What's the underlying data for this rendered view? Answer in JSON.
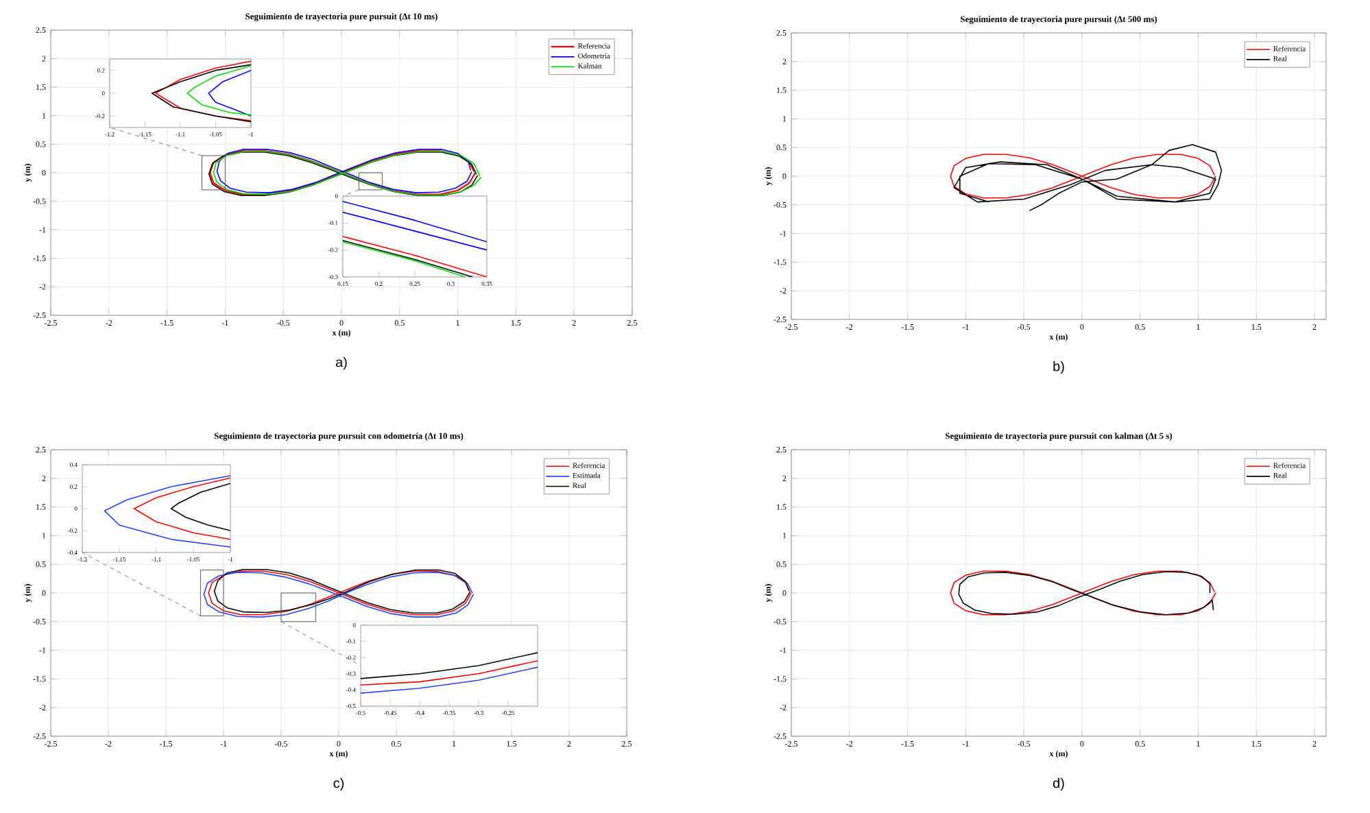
{
  "chart_data": [
    {
      "type": "line",
      "title": "Seguimiento de trayectoria pure pursuit (Δt 10 ms)",
      "xlabel": "x (m)",
      "ylabel": "y (m)",
      "xlim": [
        -2.5,
        2.5
      ],
      "ylim": [
        -2.5,
        2.5
      ],
      "xticks": [
        -2.5,
        -2,
        -1.5,
        -1,
        -0.5,
        0,
        0.5,
        1,
        1.5,
        2,
        2.5
      ],
      "yticks": [
        -2.5,
        -2,
        -1.5,
        -1,
        -0.5,
        0,
        0.5,
        1,
        1.5,
        2,
        2.5
      ],
      "grid": true,
      "legend": "top right",
      "annotations": [
        "a)"
      ],
      "series": [
        {
          "name": "Referencia",
          "color": "#ff0000",
          "x": [
            1.15,
            1.1,
            1.0,
            0.85,
            0.65,
            0.45,
            0.25,
            0.1,
            0,
            -0.1,
            -0.25,
            -0.45,
            -0.65,
            -0.85,
            -1.0,
            -1.1,
            -1.13,
            -1.1,
            -1.0,
            -0.85,
            -0.65,
            -0.45,
            -0.25,
            -0.1,
            0,
            0.1,
            0.25,
            0.45,
            0.65,
            0.85,
            1.0,
            1.1,
            1.14
          ],
          "values": [
            0,
            -0.18,
            -0.31,
            -0.38,
            -0.38,
            -0.32,
            -0.2,
            -0.08,
            0,
            0.08,
            0.2,
            0.32,
            0.38,
            0.38,
            0.31,
            0.18,
            0,
            -0.18,
            -0.31,
            -0.38,
            -0.38,
            -0.32,
            -0.2,
            -0.08,
            0,
            0.08,
            0.2,
            0.32,
            0.38,
            0.38,
            0.31,
            0.18,
            0.02
          ]
        },
        {
          "color": "#000000",
          "x": [
            1.17,
            1.12,
            1.02,
            0.87,
            0.66,
            0.45,
            0.25,
            0.1,
            0,
            -0.1,
            -0.26,
            -0.46,
            -0.66,
            -0.86,
            -1.02,
            -1.11,
            -1.14,
            -1.11,
            -1.01,
            -0.86,
            -0.66,
            -0.45,
            -0.25,
            -0.1,
            0,
            0.1,
            0.25,
            0.45,
            0.65,
            0.86,
            1.02,
            1.12,
            1.16
          ],
          "values": [
            -0.05,
            -0.22,
            -0.34,
            -0.4,
            -0.4,
            -0.33,
            -0.21,
            -0.1,
            -0.02,
            0.06,
            0.18,
            0.3,
            0.36,
            0.36,
            0.29,
            0.16,
            -0.02,
            -0.2,
            -0.33,
            -0.4,
            -0.4,
            -0.34,
            -0.22,
            -0.1,
            -0.02,
            0.06,
            0.18,
            0.3,
            0.36,
            0.36,
            0.29,
            0.15,
            -0.03
          ]
        },
        {
          "name": "Odometría",
          "color": "#0000ff",
          "x": [
            1.12,
            1.08,
            0.98,
            0.84,
            0.64,
            0.44,
            0.24,
            0.1,
            0,
            -0.1,
            -0.24,
            -0.44,
            -0.64,
            -0.84,
            -0.98,
            -1.05,
            -1.07,
            -1.04,
            -0.96,
            -0.82,
            -0.62,
            -0.42,
            -0.22,
            -0.08,
            0.02,
            0.12,
            0.27,
            0.47,
            0.67,
            0.86,
            1.0,
            1.09,
            1.11
          ],
          "values": [
            0.02,
            -0.15,
            -0.27,
            -0.34,
            -0.35,
            -0.29,
            -0.17,
            -0.05,
            0.03,
            0.11,
            0.23,
            0.35,
            0.41,
            0.41,
            0.34,
            0.2,
            0.02,
            -0.14,
            -0.27,
            -0.34,
            -0.35,
            -0.29,
            -0.17,
            -0.05,
            0.03,
            0.11,
            0.23,
            0.35,
            0.41,
            0.41,
            0.34,
            0.2,
            0.04
          ]
        },
        {
          "name": "Kalman",
          "color": "#00dd00",
          "x": [
            1.2,
            1.14,
            1.03,
            0.88,
            0.67,
            0.46,
            0.26,
            0.11,
            0.01,
            -0.09,
            -0.24,
            -0.44,
            -0.64,
            -0.84,
            -0.99,
            -1.08,
            -1.1,
            -1.07,
            -0.98,
            -0.84,
            -0.64,
            -0.44,
            -0.24,
            -0.09,
            0.01,
            0.11,
            0.26,
            0.46,
            0.66,
            0.87,
            1.03,
            1.14,
            1.19
          ],
          "values": [
            -0.08,
            -0.22,
            -0.33,
            -0.39,
            -0.39,
            -0.33,
            -0.21,
            -0.09,
            -0.01,
            0.07,
            0.19,
            0.31,
            0.37,
            0.37,
            0.3,
            0.17,
            0,
            -0.17,
            -0.3,
            -0.37,
            -0.38,
            -0.33,
            -0.21,
            -0.09,
            -0.01,
            0.07,
            0.19,
            0.31,
            0.37,
            0.37,
            0.3,
            0.16,
            -0.06
          ]
        }
      ]
    },
    {
      "type": "line",
      "xlim": [
        -1.2,
        -1
      ],
      "ylim": [
        -0.3,
        0.3
      ],
      "xticks": [
        -1.2,
        -1.15,
        -1.1,
        -1.05,
        -1
      ],
      "yticks": [
        -0.2,
        0,
        0.2
      ],
      "series": [
        {
          "color": "#ff0000",
          "x": [
            -1,
            -1.05,
            -1.1,
            -1.135,
            -1.1,
            -1.05,
            -1
          ],
          "values": [
            0.28,
            0.22,
            0.12,
            0,
            -0.13,
            -0.2,
            -0.24
          ]
        },
        {
          "color": "#000000",
          "x": [
            -1,
            -1.05,
            -1.1,
            -1.14,
            -1.11,
            -1.05,
            -1
          ],
          "values": [
            0.25,
            0.2,
            0.1,
            0,
            -0.12,
            -0.2,
            -0.25
          ]
        },
        {
          "color": "#0000ff",
          "x": [
            -1,
            -1.04,
            -1.06,
            -1.05,
            -1.02,
            -1
          ],
          "values": [
            0.2,
            0.1,
            0,
            -0.08,
            -0.15,
            -0.2
          ]
        },
        {
          "color": "#00dd00",
          "x": [
            -1,
            -1.05,
            -1.08,
            -1.09,
            -1.07,
            -1.03,
            -1
          ],
          "values": [
            0.24,
            0.15,
            0.05,
            0,
            -0.1,
            -0.17,
            -0.19
          ]
        }
      ]
    },
    {
      "type": "line",
      "xlim": [
        0.15,
        0.35
      ],
      "ylim": [
        -0.3,
        0
      ],
      "xticks": [
        0.15,
        0.2,
        0.25,
        0.3,
        0.35
      ],
      "yticks": [
        -0.3,
        -0.2,
        -0.1,
        0
      ],
      "series": [
        {
          "color": "#ff0000",
          "x": [
            0.15,
            0.25,
            0.35
          ],
          "values": [
            -0.15,
            -0.22,
            -0.3
          ]
        },
        {
          "color": "#000000",
          "x": [
            0.15,
            0.25,
            0.33
          ],
          "values": [
            -0.165,
            -0.235,
            -0.3
          ]
        },
        {
          "color": "#0000ff",
          "x": [
            0.15,
            0.25,
            0.35
          ],
          "values": [
            -0.02,
            -0.09,
            -0.17
          ]
        },
        {
          "color": "#0000ff",
          "x": [
            0.15,
            0.25,
            0.35
          ],
          "values": [
            -0.06,
            -0.13,
            -0.2
          ]
        },
        {
          "color": "#00dd00",
          "x": [
            0.15,
            0.25,
            0.32
          ],
          "values": [
            -0.17,
            -0.24,
            -0.3
          ]
        }
      ]
    },
    {
      "type": "line",
      "title": "Seguimiento de trayectoria pure pursuit (Δt 500 ms)",
      "xlabel": "x (m)",
      "ylabel": "y (m)",
      "xlim": [
        -2.5,
        2.1
      ],
      "ylim": [
        -2.5,
        2.5
      ],
      "xticks": [
        -2.5,
        -2,
        -1.5,
        -1,
        -0.5,
        0,
        0.5,
        1,
        1.5,
        2
      ],
      "yticks": [
        -2.5,
        -2,
        -1.5,
        -1,
        -0.5,
        0,
        0.5,
        1,
        1.5,
        2,
        2.5
      ],
      "grid": true,
      "legend": "top right",
      "annotations": [
        "b)"
      ],
      "series": [
        {
          "name": "Referencia",
          "color": "#ff0000",
          "x": [
            1.15,
            1.1,
            1.0,
            0.85,
            0.65,
            0.45,
            0.25,
            0.1,
            0,
            -0.1,
            -0.25,
            -0.45,
            -0.65,
            -0.85,
            -1.0,
            -1.1,
            -1.13,
            -1.1,
            -1.0,
            -0.85,
            -0.65,
            -0.45,
            -0.25,
            -0.1,
            0,
            0.1,
            0.25,
            0.45,
            0.65,
            0.85,
            1.0,
            1.1,
            1.14
          ],
          "values": [
            0,
            -0.18,
            -0.31,
            -0.38,
            -0.38,
            -0.32,
            -0.2,
            -0.08,
            0,
            0.08,
            0.2,
            0.32,
            0.38,
            0.38,
            0.31,
            0.18,
            0,
            -0.18,
            -0.31,
            -0.38,
            -0.38,
            -0.32,
            -0.2,
            -0.08,
            0,
            0.08,
            0.2,
            0.32,
            0.38,
            0.38,
            0.31,
            0.18,
            0.02
          ]
        },
        {
          "name": "Real",
          "color": "#000000",
          "x": [
            -0.45,
            -0.35,
            -0.2,
            0,
            0.3,
            0.6,
            0.75,
            0.95,
            1.15,
            1.2,
            1.17,
            1.1,
            0.8,
            0.3,
            0,
            -0.3,
            -0.7,
            -1.0,
            -1.1,
            -0.9,
            -0.5,
            -0.1,
            0.2,
            0.6,
            0.85,
            1.15,
            1.1,
            0.8,
            0.3,
            0,
            -0.4,
            -0.8,
            -1.05,
            -1.05,
            -0.8
          ],
          "values": [
            -0.6,
            -0.5,
            -0.3,
            -0.1,
            -0.05,
            0.2,
            0.45,
            0.55,
            0.42,
            0.1,
            -0.15,
            -0.4,
            -0.45,
            -0.4,
            -0.05,
            0.2,
            0.25,
            0.15,
            -0.2,
            -0.45,
            -0.4,
            -0.15,
            0.1,
            0.2,
            0.15,
            -0.05,
            -0.3,
            -0.45,
            -0.35,
            -0.05,
            0.2,
            0.22,
            0,
            -0.3,
            -0.45
          ]
        }
      ]
    },
    {
      "type": "line",
      "title": "Seguimiento de trayectoria pure pursuit con odometría (Δt 10 ms)",
      "xlabel": "x (m)",
      "ylabel": "y (m)",
      "xlim": [
        -2.5,
        2.5
      ],
      "ylim": [
        -2.5,
        2.5
      ],
      "xticks": [
        -2.5,
        -2,
        -1.5,
        -1,
        -0.5,
        0,
        0.5,
        1,
        1.5,
        2,
        2.5
      ],
      "yticks": [
        -2.5,
        -2,
        -1.5,
        -1,
        -0.5,
        0,
        0.5,
        1,
        1.5,
        2,
        2.5
      ],
      "grid": true,
      "legend": "top right",
      "annotations": [
        "c)"
      ],
      "series": [
        {
          "name": "Referencia",
          "color": "#ff0000",
          "x": [
            1.15,
            1.1,
            1.0,
            0.85,
            0.65,
            0.45,
            0.25,
            0.1,
            0,
            -0.1,
            -0.25,
            -0.45,
            -0.65,
            -0.85,
            -1.0,
            -1.1,
            -1.13,
            -1.1,
            -1.0,
            -0.85,
            -0.65,
            -0.45,
            -0.25,
            -0.1,
            0,
            0.1,
            0.25,
            0.45,
            0.65,
            0.85,
            1.0,
            1.1,
            1.14
          ],
          "values": [
            0,
            -0.18,
            -0.31,
            -0.38,
            -0.38,
            -0.32,
            -0.2,
            -0.08,
            0,
            0.08,
            0.2,
            0.32,
            0.38,
            0.38,
            0.31,
            0.18,
            0,
            -0.18,
            -0.31,
            -0.38,
            -0.38,
            -0.32,
            -0.2,
            -0.08,
            0,
            0.08,
            0.2,
            0.32,
            0.38,
            0.38,
            0.31,
            0.18,
            0.02
          ]
        },
        {
          "name": "Estimada",
          "color": "#2244ff",
          "x": [
            1.17,
            1.12,
            1.02,
            0.86,
            0.66,
            0.45,
            0.25,
            0.1,
            0,
            -0.1,
            -0.26,
            -0.47,
            -0.67,
            -0.88,
            -1.04,
            -1.14,
            -1.17,
            -1.14,
            -1.04,
            -0.88,
            -0.67,
            -0.46,
            -0.26,
            -0.1,
            0,
            0.1,
            0.25,
            0.45,
            0.65,
            0.86,
            1.02,
            1.12,
            1.16
          ],
          "values": [
            -0.02,
            -0.21,
            -0.35,
            -0.42,
            -0.42,
            -0.36,
            -0.24,
            -0.12,
            -0.04,
            0.04,
            0.16,
            0.28,
            0.35,
            0.36,
            0.3,
            0.17,
            -0.02,
            -0.2,
            -0.33,
            -0.41,
            -0.42,
            -0.38,
            -0.27,
            -0.15,
            -0.06,
            0.03,
            0.15,
            0.28,
            0.35,
            0.36,
            0.3,
            0.16,
            0
          ]
        },
        {
          "name": "Real",
          "color": "#000000",
          "x": [
            1.14,
            1.09,
            0.99,
            0.85,
            0.65,
            0.45,
            0.25,
            0.1,
            0,
            -0.1,
            -0.24,
            -0.43,
            -0.63,
            -0.83,
            -0.97,
            -1.05,
            -1.08,
            -1.05,
            -0.97,
            -0.83,
            -0.63,
            -0.43,
            -0.23,
            -0.08,
            0.02,
            0.12,
            0.27,
            0.47,
            0.67,
            0.87,
            1.01,
            1.1,
            1.13
          ],
          "values": [
            0.02,
            -0.15,
            -0.28,
            -0.35,
            -0.35,
            -0.29,
            -0.17,
            -0.05,
            0.03,
            0.11,
            0.23,
            0.35,
            0.41,
            0.41,
            0.35,
            0.21,
            0.03,
            -0.14,
            -0.26,
            -0.33,
            -0.34,
            -0.3,
            -0.2,
            -0.1,
            -0.02,
            0.07,
            0.2,
            0.33,
            0.4,
            0.4,
            0.34,
            0.2,
            0.04
          ]
        }
      ]
    },
    {
      "type": "line",
      "xlim": [
        -1.2,
        -1
      ],
      "ylim": [
        -0.4,
        0.4
      ],
      "xticks": [
        -1.2,
        -1.15,
        -1.1,
        -1.05,
        -1
      ],
      "yticks": [
        -0.4,
        -0.2,
        0,
        0.2,
        0.4
      ],
      "series": [
        {
          "color": "#ff0000",
          "x": [
            -1,
            -1.05,
            -1.1,
            -1.13,
            -1.1,
            -1.05,
            -1
          ],
          "values": [
            0.28,
            0.2,
            0.1,
            0,
            -0.12,
            -0.22,
            -0.28
          ]
        },
        {
          "color": "#2244ff",
          "x": [
            -1,
            -1.08,
            -1.14,
            -1.17,
            -1.15,
            -1.08,
            -1
          ],
          "values": [
            0.3,
            0.2,
            0.08,
            -0.02,
            -0.15,
            -0.28,
            -0.35
          ]
        },
        {
          "color": "#000000",
          "x": [
            -1,
            -1.04,
            -1.07,
            -1.08,
            -1.06,
            -1.03,
            -1
          ],
          "values": [
            0.23,
            0.15,
            0.05,
            0,
            -0.08,
            -0.15,
            -0.2
          ]
        }
      ]
    },
    {
      "type": "line",
      "xlim": [
        -0.5,
        -0.2
      ],
      "ylim": [
        -0.5,
        0
      ],
      "xticks": [
        -0.5,
        -0.45,
        -0.4,
        -0.35,
        -0.3,
        -0.25
      ],
      "yticks": [
        -0.5,
        -0.4,
        -0.3,
        -0.2,
        -0.1,
        0
      ],
      "series": [
        {
          "color": "#ff0000",
          "x": [
            -0.5,
            -0.4,
            -0.3,
            -0.2
          ],
          "values": [
            -0.37,
            -0.35,
            -0.3,
            -0.22
          ]
        },
        {
          "color": "#2244ff",
          "x": [
            -0.5,
            -0.4,
            -0.3,
            -0.2
          ],
          "values": [
            -0.42,
            -0.39,
            -0.34,
            -0.26
          ]
        },
        {
          "color": "#000000",
          "x": [
            -0.5,
            -0.4,
            -0.3,
            -0.2
          ],
          "values": [
            -0.33,
            -0.3,
            -0.25,
            -0.17
          ]
        }
      ]
    },
    {
      "type": "line",
      "title": "Seguimiento de trayectoria pure pursuit con kalman (Δt 5 s)",
      "xlabel": "x (m)",
      "ylabel": "y (m)",
      "xlim": [
        -2.5,
        2.1
      ],
      "ylim": [
        -2.5,
        2.5
      ],
      "xticks": [
        -2.5,
        -2,
        -1.5,
        -1,
        -0.5,
        0,
        0.5,
        1,
        1.5,
        2
      ],
      "yticks": [
        -2.5,
        -2,
        -1.5,
        -1,
        -0.5,
        0,
        0.5,
        1,
        1.5,
        2,
        2.5
      ],
      "grid": true,
      "legend": "top right",
      "annotations": [
        "d)"
      ],
      "series": [
        {
          "name": "Referencia",
          "color": "#ff0000",
          "x": [
            1.15,
            1.1,
            1.0,
            0.85,
            0.65,
            0.45,
            0.25,
            0.1,
            0,
            -0.1,
            -0.25,
            -0.45,
            -0.65,
            -0.85,
            -1.0,
            -1.1,
            -1.13,
            -1.1,
            -1.0,
            -0.85,
            -0.65,
            -0.45,
            -0.25,
            -0.1,
            0,
            0.1,
            0.25,
            0.45,
            0.65,
            0.85,
            1.0,
            1.1,
            1.14
          ],
          "values": [
            0,
            -0.18,
            -0.31,
            -0.38,
            -0.38,
            -0.32,
            -0.2,
            -0.08,
            0,
            0.08,
            0.2,
            0.32,
            0.38,
            0.38,
            0.31,
            0.18,
            0,
            -0.18,
            -0.31,
            -0.38,
            -0.38,
            -0.32,
            -0.2,
            -0.08,
            0,
            0.08,
            0.2,
            0.32,
            0.38,
            0.38,
            0.31,
            0.18,
            0.02
          ]
        },
        {
          "name": "Real",
          "color": "#000000",
          "x": [
            1.13,
            1.12,
            1.05,
            0.92,
            0.72,
            0.5,
            0.28,
            0.12,
            0.02,
            -0.1,
            -0.26,
            -0.46,
            -0.66,
            -0.84,
            -0.98,
            -1.05,
            -1.06,
            -1.02,
            -0.92,
            -0.78,
            -0.58,
            -0.38,
            -0.2,
            -0.06,
            0.04,
            0.16,
            0.32,
            0.52,
            0.72,
            0.9,
            1.03,
            1.1,
            1.1
          ],
          "values": [
            -0.3,
            -0.12,
            -0.25,
            -0.35,
            -0.38,
            -0.33,
            -0.22,
            -0.1,
            -0.02,
            0.07,
            0.2,
            0.31,
            0.36,
            0.35,
            0.28,
            0.15,
            -0.02,
            -0.18,
            -0.3,
            -0.36,
            -0.37,
            -0.33,
            -0.22,
            -0.1,
            -0.02,
            0.07,
            0.2,
            0.32,
            0.37,
            0.36,
            0.29,
            0.16,
            0.0
          ]
        }
      ]
    }
  ]
}
